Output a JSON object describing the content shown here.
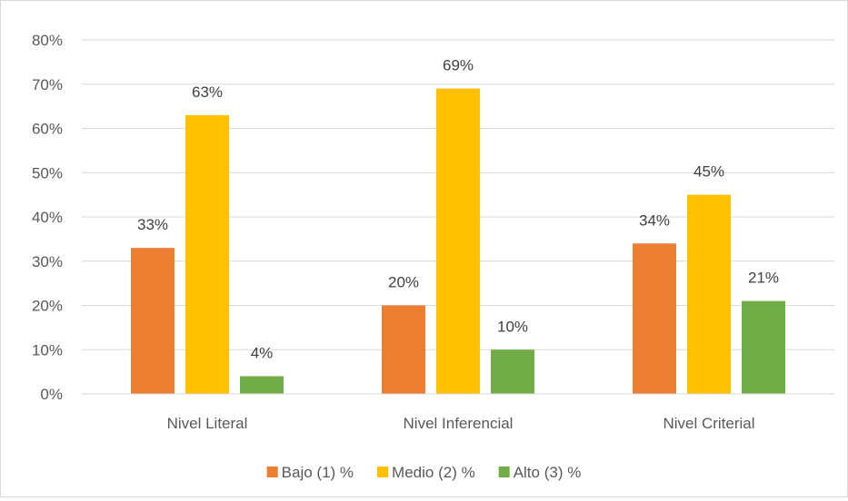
{
  "chart_data": {
    "type": "bar",
    "categories": [
      "Nivel Literal",
      "Nivel Inferencial",
      "Nivel Criterial"
    ],
    "series": [
      {
        "name": "Bajo (1) %",
        "values": [
          33,
          20,
          34
        ],
        "labels": [
          "33%",
          "20%",
          "34%"
        ],
        "color": "#ed7d31"
      },
      {
        "name": "Medio (2) %",
        "values": [
          63,
          69,
          45
        ],
        "labels": [
          "63%",
          "69%",
          "45%"
        ],
        "color": "#ffc000"
      },
      {
        "name": "Alto (3) %",
        "values": [
          4,
          10,
          21
        ],
        "labels": [
          "4%",
          "10%",
          "21%"
        ],
        "color": "#70ad47"
      }
    ],
    "ylim": [
      0,
      80
    ],
    "yticks": [
      "0%",
      "10%",
      "20%",
      "30%",
      "40%",
      "50%",
      "60%",
      "70%",
      "80%"
    ],
    "grid": true,
    "legend": "bottom",
    "title": "",
    "xlabel": "",
    "ylabel": ""
  }
}
